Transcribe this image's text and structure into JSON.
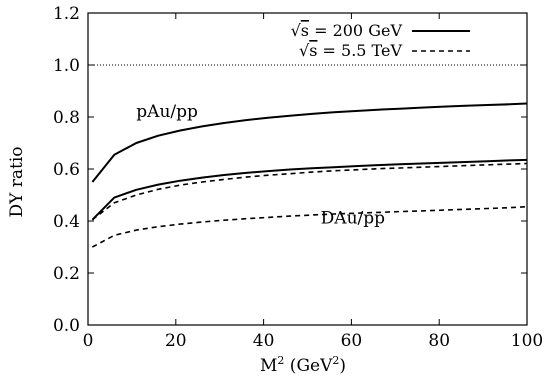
{
  "chart_data": {
    "type": "line",
    "xlabel": "M",
    "xlabel_sup": "2",
    "xlabel_unit_open": " (GeV",
    "xlabel_unit_sup": "2",
    "xlabel_unit_close": ")",
    "ylabel": "DY ratio",
    "xlim": [
      0,
      100
    ],
    "ylim": [
      0.0,
      1.2
    ],
    "xticks": [
      0,
      20,
      40,
      60,
      80,
      100
    ],
    "yticks": [
      0.0,
      0.2,
      0.4,
      0.6,
      0.8,
      1.0,
      1.2
    ],
    "xtick_labels": [
      "0",
      "20",
      "40",
      "60",
      "80",
      "100"
    ],
    "ytick_labels": [
      "0.0",
      "0.2",
      "0.4",
      "0.6",
      "0.8",
      "1.0",
      "1.2"
    ],
    "grid": false,
    "legend_placement": "top-right",
    "reference_line": {
      "y": 1.0,
      "style": "dotted"
    },
    "legend": [
      {
        "sqrt_symbol": "√",
        "var": "s",
        "rest": " = 200 GeV",
        "style": "solid"
      },
      {
        "sqrt_symbol": "√",
        "var": "s",
        "rest": " = 5.5 TeV",
        "style": "dashed"
      }
    ],
    "annotations": [
      {
        "text": "pAu/pp",
        "x": 11,
        "y": 0.8
      },
      {
        "text": "DAu/pp",
        "x": 53,
        "y": 0.39
      }
    ],
    "series": [
      {
        "style": "solid",
        "color": "#000000",
        "x": [
          1,
          6,
          11,
          16,
          21,
          26,
          31,
          36,
          41,
          46,
          51,
          56,
          61,
          66,
          71,
          76,
          81,
          86,
          91,
          96,
          100
        ],
        "y": [
          0.55,
          0.655,
          0.7,
          0.728,
          0.748,
          0.764,
          0.777,
          0.788,
          0.797,
          0.805,
          0.812,
          0.818,
          0.823,
          0.828,
          0.832,
          0.836,
          0.84,
          0.843,
          0.846,
          0.849,
          0.852
        ]
      },
      {
        "style": "solid",
        "color": "#000000",
        "x": [
          1,
          6,
          11,
          16,
          21,
          26,
          31,
          36,
          41,
          46,
          51,
          56,
          61,
          66,
          71,
          76,
          81,
          86,
          91,
          96,
          100
        ],
        "y": [
          0.405,
          0.49,
          0.52,
          0.54,
          0.555,
          0.567,
          0.577,
          0.585,
          0.592,
          0.598,
          0.603,
          0.607,
          0.611,
          0.615,
          0.618,
          0.621,
          0.624,
          0.627,
          0.63,
          0.633,
          0.635
        ]
      },
      {
        "style": "dashed",
        "color": "#000000",
        "x": [
          1,
          6,
          11,
          16,
          21,
          26,
          31,
          36,
          41,
          46,
          51,
          56,
          61,
          66,
          71,
          76,
          81,
          86,
          91,
          96,
          100
        ],
        "y": [
          0.405,
          0.47,
          0.5,
          0.522,
          0.538,
          0.55,
          0.56,
          0.569,
          0.576,
          0.582,
          0.588,
          0.593,
          0.597,
          0.601,
          0.604,
          0.607,
          0.61,
          0.613,
          0.616,
          0.619,
          0.621
        ]
      },
      {
        "style": "dashed",
        "color": "#000000",
        "x": [
          1,
          6,
          11,
          16,
          21,
          26,
          31,
          36,
          41,
          46,
          51,
          56,
          61,
          66,
          71,
          76,
          81,
          86,
          91,
          96,
          100
        ],
        "y": [
          0.3,
          0.345,
          0.365,
          0.378,
          0.388,
          0.396,
          0.403,
          0.409,
          0.414,
          0.419,
          0.423,
          0.427,
          0.43,
          0.433,
          0.436,
          0.439,
          0.442,
          0.445,
          0.448,
          0.451,
          0.455
        ]
      }
    ]
  }
}
